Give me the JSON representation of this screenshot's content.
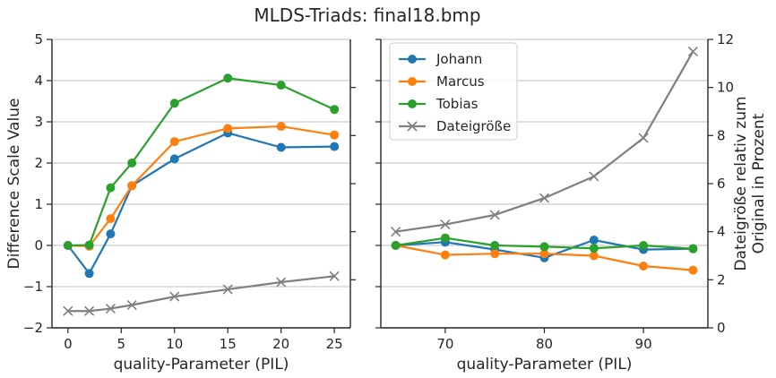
{
  "figure": {
    "title": "MLDS-Triads: final18.bmp"
  },
  "chart_data": [
    {
      "type": "line",
      "xlabel": "quality-Parameter (PIL)",
      "ylabel": "Difference Scale Value",
      "xlim": [
        -1.5,
        26.5
      ],
      "ylim": [
        -2,
        5
      ],
      "xticks": [
        0,
        5,
        10,
        15,
        20,
        25
      ],
      "yticks": [
        -2,
        -1,
        0,
        1,
        2,
        3,
        4,
        5
      ],
      "ytick_labels": [
        "−2",
        "−1",
        "0",
        "1",
        "2",
        "3",
        "4",
        "5"
      ],
      "right_ylim": [
        0,
        12
      ],
      "right_yticks": [
        2,
        4,
        6,
        8,
        10
      ],
      "grid": "horizontal",
      "x": [
        0,
        2,
        4,
        6,
        10,
        15,
        20,
        25
      ],
      "series": [
        {
          "name": "Johann",
          "color": "#1f77b4",
          "marker": "circle",
          "values": [
            0,
            -0.68,
            0.28,
            1.45,
            2.1,
            2.73,
            2.38,
            2.4
          ]
        },
        {
          "name": "Marcus",
          "color": "#ff7f0e",
          "marker": "circle",
          "values": [
            0,
            -0.02,
            0.65,
            1.45,
            2.52,
            2.84,
            2.89,
            2.68
          ]
        },
        {
          "name": "Tobias",
          "color": "#2ca02c",
          "marker": "circle",
          "values": [
            0,
            0.01,
            1.4,
            2.0,
            3.45,
            4.06,
            3.89,
            3.3
          ]
        },
        {
          "name": "Dateigröße",
          "color": "#7f7f7f",
          "marker": "x",
          "axis": "right",
          "values": [
            0.7,
            0.7,
            0.8,
            0.95,
            1.3,
            1.6,
            1.9,
            2.15
          ]
        }
      ]
    },
    {
      "type": "line",
      "xlabel": "quality-Parameter (PIL)",
      "ylabel": "Dateigröße relativ zum\nOriginal in Prozent",
      "xlim": [
        63.5,
        96.5
      ],
      "ylim": [
        -2,
        5
      ],
      "xticks": [
        70,
        80,
        90
      ],
      "yticks": [
        -2,
        -1,
        0,
        1,
        2,
        3,
        4,
        5
      ],
      "right_ylim": [
        0,
        12
      ],
      "right_yticks": [
        0,
        2,
        4,
        6,
        8,
        10,
        12
      ],
      "grid": "horizontal",
      "legend": "top-left",
      "x": [
        65,
        70,
        75,
        80,
        85,
        90,
        95
      ],
      "series": [
        {
          "name": "Johann",
          "color": "#1f77b4",
          "marker": "circle",
          "values": [
            0,
            0.08,
            -0.1,
            -0.3,
            0.13,
            -0.1,
            -0.08
          ]
        },
        {
          "name": "Marcus",
          "color": "#ff7f0e",
          "marker": "circle",
          "values": [
            0,
            -0.23,
            -0.2,
            -0.2,
            -0.25,
            -0.5,
            -0.6
          ]
        },
        {
          "name": "Tobias",
          "color": "#2ca02c",
          "marker": "circle",
          "values": [
            0,
            0.18,
            0,
            -0.03,
            -0.07,
            0,
            -0.08
          ]
        },
        {
          "name": "Dateigröße",
          "color": "#7f7f7f",
          "marker": "x",
          "axis": "right",
          "values": [
            4.0,
            4.3,
            4.7,
            5.4,
            6.3,
            7.9,
            11.5
          ]
        }
      ]
    }
  ]
}
